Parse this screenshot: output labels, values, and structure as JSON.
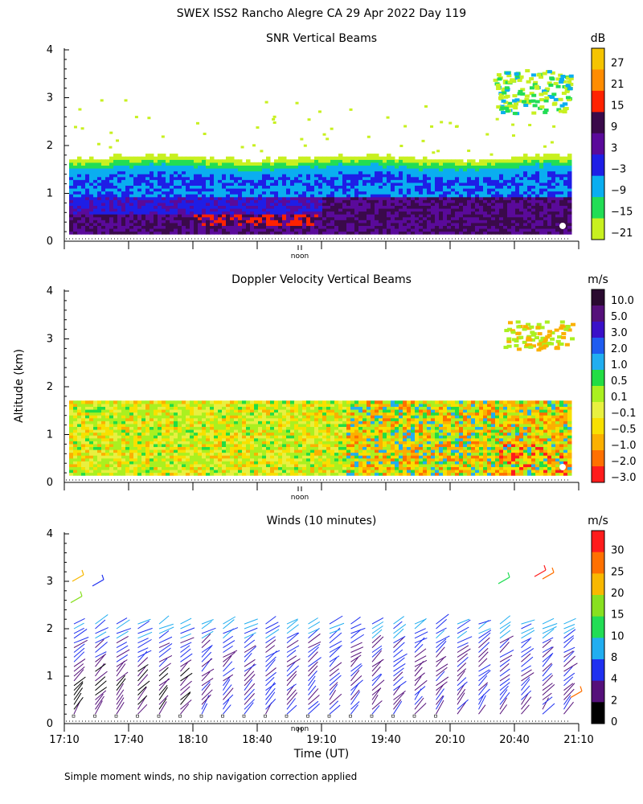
{
  "main_title": "SWEX ISS2 Rancho Alegre CA  29 Apr 2022 Day 119",
  "y_axis_label": "Altitude (km)",
  "x_axis_label": "Time (UT)",
  "noon_label": "noon",
  "footnote": "Simple moment winds, no ship navigation correction applied",
  "chart_data": [
    {
      "type": "heatmap",
      "title": "SNR Vertical Beams",
      "ylabel": "Altitude (km)",
      "ylim": [
        0,
        4
      ],
      "yticks": [
        "0",
        "1",
        "2",
        "3",
        "4"
      ],
      "xlim": [
        "17:10",
        "21:10"
      ],
      "colorbar": {
        "unit": "dB",
        "labels": [
          "27",
          "21",
          "15",
          "9",
          "3",
          "−3",
          "−9",
          "−15",
          "−21"
        ],
        "colors": [
          "#f5c400",
          "#ff8c00",
          "#ff2200",
          "#3a0a4a",
          "#5a0a9a",
          "#1e1ee6",
          "#0aaef0",
          "#22dd55",
          "#c8f020"
        ]
      }
    },
    {
      "type": "heatmap",
      "title": "Doppler Velocity Vertical Beams",
      "ylabel": "Altitude (km)",
      "ylim": [
        0,
        4
      ],
      "yticks": [
        "0",
        "1",
        "2",
        "3",
        "4"
      ],
      "xlim": [
        "17:10",
        "21:10"
      ],
      "colorbar": {
        "unit": "m/s",
        "labels": [
          "10.0",
          "5.0",
          "3.0",
          "2.0",
          "1.0",
          "0.5",
          "0.1",
          "−0.1",
          "−0.5",
          "−1.0",
          "−2.0",
          "−3.0"
        ],
        "colors": [
          "#2a0a30",
          "#55107a",
          "#3a10c8",
          "#1f5cf0",
          "#21aef0",
          "#22dd44",
          "#aaf020",
          "#e8f040",
          "#f8e000",
          "#fbb000",
          "#ff7000",
          "#ff1c1c"
        ]
      }
    },
    {
      "type": "barbs",
      "title": "Winds (10 minutes)",
      "ylabel": "Altitude (km)",
      "ylim": [
        0,
        4
      ],
      "yticks": [
        "0",
        "1",
        "2",
        "3",
        "4"
      ],
      "x_ticks": [
        "17:10",
        "17:40",
        "18:10",
        "18:40",
        "19:10",
        "19:40",
        "20:10",
        "20:40",
        "21:10"
      ],
      "xlabel": "Time (UT)",
      "colorbar": {
        "unit": "m/s",
        "labels": [
          "30",
          "25",
          "20",
          "15",
          "10",
          "8",
          "4",
          "2",
          "0"
        ],
        "colors": [
          "#ff1c1c",
          "#ff7000",
          "#f8b800",
          "#88e020",
          "#22dd55",
          "#21aef0",
          "#1f30f0",
          "#55107a",
          "#000000"
        ]
      }
    }
  ]
}
